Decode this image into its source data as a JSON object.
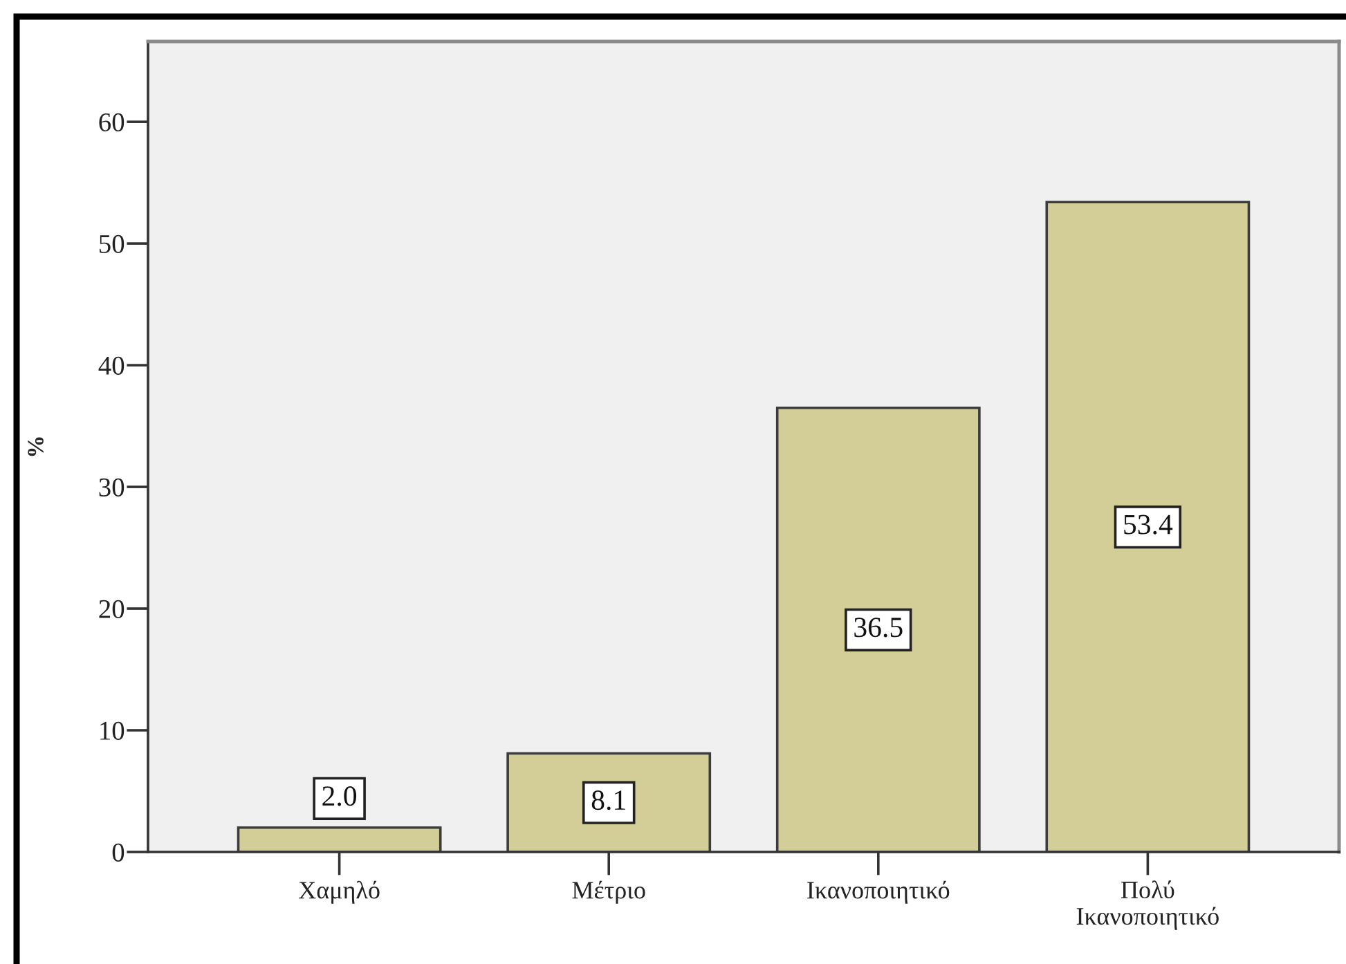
{
  "chart_data": {
    "type": "bar",
    "ylabel": "%",
    "categories": [
      "Χαμηλό",
      "Μέτριο",
      "Ικανοποιητικό",
      "Πολύ\nΙκανοποιητικό"
    ],
    "values": [
      2.0,
      8.1,
      36.5,
      53.4
    ],
    "color": "#d3ce98",
    "value_labels": [
      "2.0",
      "8.1",
      "36.5",
      "53.4"
    ],
    "ylim": [
      0,
      66.6
    ],
    "yticks": [
      0,
      10,
      20,
      30,
      40,
      50,
      60
    ]
  }
}
